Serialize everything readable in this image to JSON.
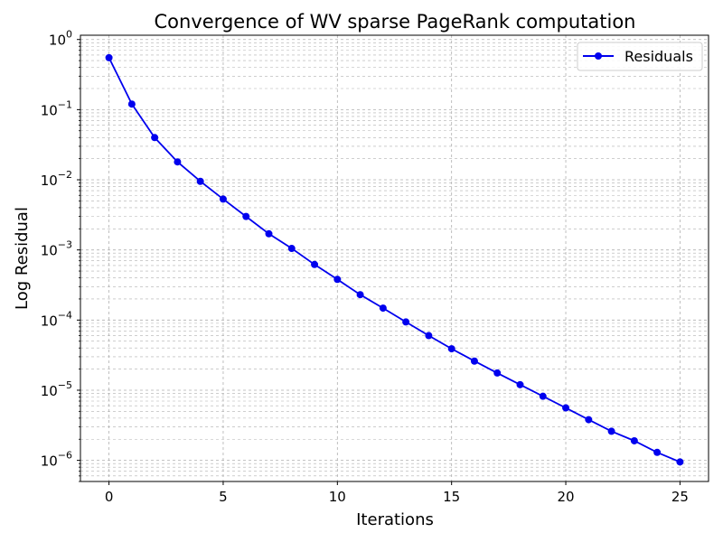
{
  "chart_data": {
    "type": "line",
    "title": "Convergence of WV sparse PageRank computation",
    "xlabel": "Iterations",
    "ylabel": "Log Residual",
    "yscale": "log",
    "xlim": [
      -1.25,
      26.25
    ],
    "ylim": [
      5e-07,
      1.15
    ],
    "grid": true,
    "grid_minor": true,
    "legend": {
      "placement": "top-right",
      "entries": [
        "Residuals"
      ]
    },
    "x_ticks": [
      0,
      5,
      10,
      15,
      20,
      25
    ],
    "x_tick_labels": [
      "0",
      "5",
      "10",
      "15",
      "20",
      "25"
    ],
    "y_ticks": [
      1,
      0.1,
      0.01,
      0.001,
      0.0001,
      1e-05,
      1e-06
    ],
    "y_tick_labels": [
      {
        "base": "10",
        "exp": "0"
      },
      {
        "base": "10",
        "exp": "−1"
      },
      {
        "base": "10",
        "exp": "−2"
      },
      {
        "base": "10",
        "exp": "−3"
      },
      {
        "base": "10",
        "exp": "−4"
      },
      {
        "base": "10",
        "exp": "−5"
      },
      {
        "base": "10",
        "exp": "−6"
      }
    ],
    "series": [
      {
        "name": "Residuals",
        "color": "#0000ee",
        "x": [
          0,
          1,
          2,
          3,
          4,
          5,
          6,
          7,
          8,
          9,
          10,
          11,
          12,
          13,
          14,
          15,
          16,
          17,
          18,
          19,
          20,
          21,
          22,
          23,
          24,
          25
        ],
        "values": [
          0.55,
          0.12,
          0.04,
          0.018,
          0.0095,
          0.0053,
          0.003,
          0.0017,
          0.00105,
          0.00062,
          0.00038,
          0.00023,
          0.000148,
          9.4e-05,
          6e-05,
          3.9e-05,
          2.6e-05,
          1.76e-05,
          1.2e-05,
          8.2e-06,
          5.6e-06,
          3.8e-06,
          2.6e-06,
          1.9e-06,
          1.3e-06,
          9.5e-07
        ]
      }
    ]
  }
}
